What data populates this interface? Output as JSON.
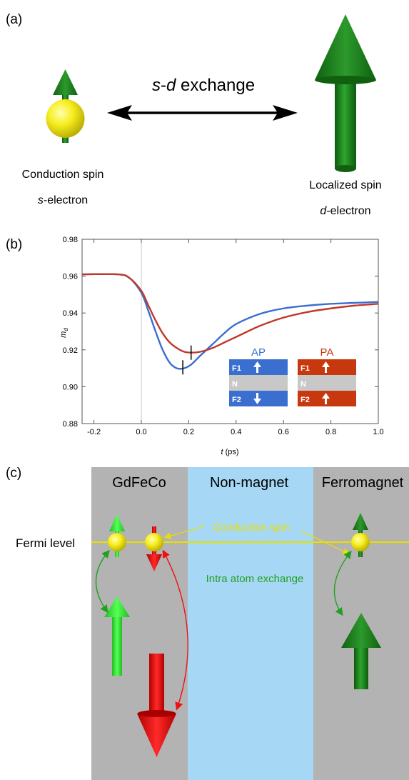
{
  "panel_a": {
    "label": "(a)",
    "exchange_prefix": "s",
    "exchange_mid": "-",
    "exchange_suffix": "d",
    "exchange_word": " exchange",
    "conduction_line1": "Conduction spin",
    "conduction_line2_italic": "s",
    "conduction_line2_rest": "-electron",
    "localized_line1": "Localized spin",
    "localized_line2_italic": "d",
    "localized_line2_rest": "-electron"
  },
  "panel_b": {
    "label": "(b)",
    "inset": {
      "ap_title": "AP",
      "pa_title": "PA",
      "layer_f1": "F1",
      "layer_n": "N",
      "layer_f2": "F2",
      "ap_arrows": [
        "up",
        "down"
      ],
      "pa_arrows": [
        "up",
        "up"
      ]
    }
  },
  "chart_data": {
    "type": "line",
    "xlabel_italic": "t",
    "xlabel_rest": " (ps)",
    "ylabel_italic": "m",
    "ylabel_sub": "d",
    "xlim": [
      -0.25,
      1.0
    ],
    "ylim": [
      0.88,
      0.98
    ],
    "x_ticks": [
      "-0.2",
      "0.0",
      "0.2",
      "0.4",
      "0.6",
      "0.8",
      "1.0"
    ],
    "y_ticks": [
      "0.88",
      "0.90",
      "0.92",
      "0.94",
      "0.96",
      "0.98"
    ],
    "grid": false,
    "series": [
      {
        "name": "AP",
        "color": "#3a6fd0",
        "x": [
          -0.25,
          -0.1,
          -0.05,
          0.0,
          0.03,
          0.06,
          0.09,
          0.12,
          0.15,
          0.18,
          0.21,
          0.25,
          0.3,
          0.35,
          0.4,
          0.5,
          0.6,
          0.7,
          0.8,
          0.9,
          1.0
        ],
        "y": [
          0.961,
          0.961,
          0.959,
          0.951,
          0.941,
          0.93,
          0.92,
          0.913,
          0.91,
          0.91,
          0.912,
          0.917,
          0.923,
          0.929,
          0.934,
          0.9395,
          0.9425,
          0.944,
          0.945,
          0.9455,
          0.946
        ]
      },
      {
        "name": "PA",
        "color": "#c0392b",
        "x": [
          -0.25,
          -0.1,
          -0.05,
          0.0,
          0.03,
          0.06,
          0.09,
          0.12,
          0.15,
          0.18,
          0.21,
          0.25,
          0.3,
          0.35,
          0.4,
          0.5,
          0.6,
          0.7,
          0.8,
          0.9,
          1.0
        ],
        "y": [
          0.961,
          0.961,
          0.959,
          0.952,
          0.944,
          0.936,
          0.929,
          0.924,
          0.921,
          0.919,
          0.9185,
          0.919,
          0.921,
          0.924,
          0.927,
          0.933,
          0.9375,
          0.9405,
          0.9425,
          0.944,
          0.945
        ]
      }
    ],
    "markers": [
      {
        "series": "AP",
        "x": 0.175,
        "y": 0.9105
      },
      {
        "series": "PA",
        "x": 0.21,
        "y": 0.9185
      }
    ],
    "vertical_reference_x": 0.0
  },
  "panel_c": {
    "label": "(c)",
    "col_gdfeco": "GdFeCo",
    "col_nonmagnet": "Non-magnet",
    "col_ferromagnet": "Ferromagnet",
    "fermi_level": "Fermi level",
    "conduction_spin": "Conduction spin",
    "intra_atom": "Intra atom exchange"
  },
  "colors": {
    "dark_green": "#1a7a1a",
    "light_green": "#33dd33",
    "red": "#ee1111",
    "yellow": "#f2e600",
    "gray": "#b3b3b3",
    "light_blue": "#a6d8f5",
    "inset_blue": "#3a6fd0",
    "inset_red": "#c8380f",
    "fermi_yellow": "#e8e000",
    "intra_green": "#22a022"
  }
}
